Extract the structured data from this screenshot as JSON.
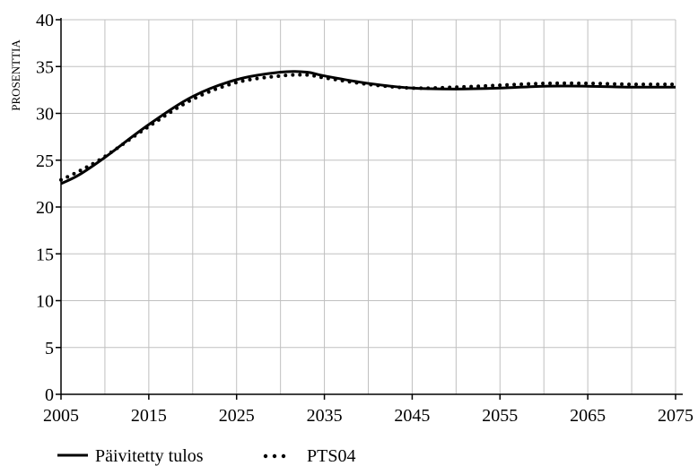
{
  "chart_data": {
    "type": "line",
    "title": "",
    "xlabel": "",
    "ylabel": "PROSENTTIA",
    "xlim": [
      2005,
      2075
    ],
    "ylim": [
      0,
      40
    ],
    "x_ticks": [
      2005,
      2015,
      2025,
      2035,
      2045,
      2055,
      2065,
      2075
    ],
    "y_ticks": [
      0,
      5,
      10,
      15,
      20,
      25,
      30,
      35,
      40
    ],
    "x_grid_step": 5,
    "grid": true,
    "legend_position": "bottom-left",
    "series": [
      {
        "name": "Päivitetty tulos",
        "style": "solid",
        "color": "#000000",
        "x": [
          2005,
          2007,
          2010,
          2015,
          2020,
          2025,
          2030,
          2033,
          2035,
          2040,
          2045,
          2050,
          2055,
          2060,
          2065,
          2070,
          2075
        ],
        "values": [
          22.5,
          23.4,
          25.3,
          28.8,
          31.8,
          33.6,
          34.4,
          34.4,
          34.0,
          33.2,
          32.7,
          32.6,
          32.7,
          32.9,
          32.9,
          32.8,
          32.8
        ]
      },
      {
        "name": "PTS04",
        "style": "dotted",
        "color": "#000000",
        "x": [
          2005,
          2007,
          2010,
          2015,
          2020,
          2025,
          2030,
          2033,
          2035,
          2040,
          2045,
          2050,
          2055,
          2060,
          2065,
          2070,
          2075
        ],
        "values": [
          22.9,
          23.8,
          25.4,
          28.6,
          31.5,
          33.3,
          34.0,
          34.1,
          33.8,
          33.1,
          32.7,
          32.8,
          33.0,
          33.2,
          33.2,
          33.1,
          33.1
        ]
      }
    ]
  }
}
